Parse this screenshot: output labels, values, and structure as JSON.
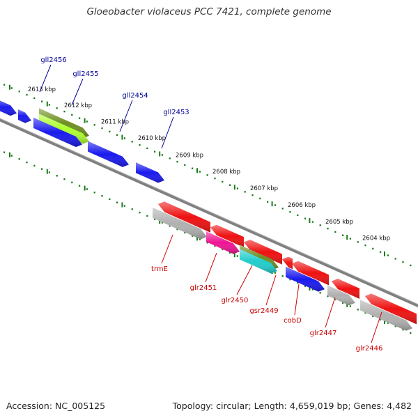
{
  "title": "Gloeobacter violaceus PCC 7421, complete genome",
  "footer": {
    "accession": "Accession: NC_005125",
    "topology": "Topology: circular; Length: 4,659,019 bp; Genes: 4,482"
  },
  "scale": {
    "labels": [
      "2613 kbp",
      "2612 kbp",
      "2611 kbp",
      "2610 kbp",
      "2609 kbp",
      "2608 kbp",
      "2607 kbp",
      "2606 kbp",
      "2605 kbp",
      "2604 kbp"
    ]
  },
  "colors": {
    "forward_gene": "#1a1aee",
    "reverse_gene": "#ee1111",
    "rna_gene": "#b0b0b0",
    "magenta_gene": "#ee1493",
    "olive_gene": "#6f8f22",
    "lime_gene": "#adff2f",
    "cyan_gene": "#22cccc",
    "backbone": "#808080",
    "tick": "#1a7a1a",
    "forward_label": "#000099",
    "reverse_label": "#cc0000"
  },
  "labels": {
    "forward": [
      "gll2456",
      "gll2455",
      "gll2454",
      "gll2453"
    ],
    "reverse": [
      "trmE",
      "glr2451",
      "glr2450",
      "gsr2449",
      "cobD",
      "glr2447",
      "glr2446"
    ]
  }
}
